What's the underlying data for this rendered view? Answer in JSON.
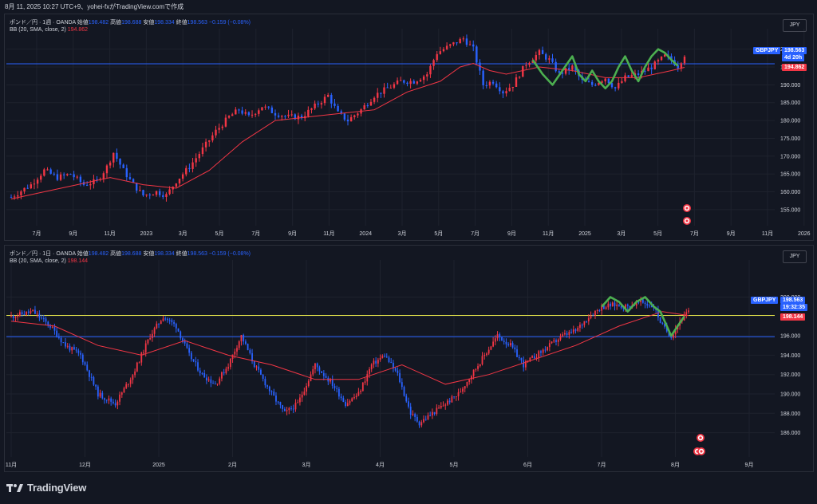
{
  "header": {
    "caption": "8月 11, 2025 10:27 UTC+9、yohei-fxがTradingView.comで作成"
  },
  "footer": {
    "brand": "TradingView"
  },
  "colors": {
    "bg": "#131722",
    "up": "#f23645",
    "down": "#2962ff",
    "bb": "#f23645",
    "wave": "#4caf50",
    "hline": "#2962ff",
    "yline": "#e8e84a"
  },
  "pane_weekly": {
    "legend": {
      "symbol": "ポンド／円 · 1週 · OANDA",
      "o_label": "始値",
      "o": "198.482",
      "h_label": "高値",
      "h": "198.688",
      "l_label": "安値",
      "l": "198.334",
      "c_label": "終値",
      "c": "198.563",
      "change": "−0.159 (−0.08%)",
      "bb_label": "BB (20, SMA, close, 2)",
      "bb_value": "194.862"
    },
    "currency": "JPY",
    "price_tag": {
      "symbol": "GBPJPY",
      "price": "198.563",
      "countdown": "4d 20h",
      "bb": "194.862"
    }
  },
  "pane_daily": {
    "legend": {
      "symbol": "ポンド／円 · 1日 · OANDA",
      "o_label": "始値",
      "o": "198.482",
      "h_label": "高値",
      "h": "198.688",
      "l_label": "安値",
      "l": "198.334",
      "c_label": "終値",
      "c": "198.563",
      "change": "−0.159 (−0.08%)",
      "bb_label": "BB (20, SMA, close, 2)",
      "bb_value": "198.144"
    },
    "currency": "JPY",
    "price_tag": {
      "symbol": "GBPJPY",
      "price": "198.563",
      "countdown": "19:32:35",
      "bb": "198.144"
    }
  },
  "chart_data": [
    {
      "type": "candlestick",
      "title": "ポンド／円 · 1週 · OANDA",
      "ylim": [
        150.5,
        203.5
      ],
      "y_ticks": [
        "155.000",
        "160.000",
        "165.000",
        "170.000",
        "175.000",
        "180.000",
        "185.000",
        "190.000",
        "195.000",
        "200.000"
      ],
      "x_ticks": [
        "7月",
        "9月",
        "11月",
        "2023",
        "3月",
        "5月",
        "7月",
        "9月",
        "11月",
        "2024",
        "3月",
        "5月",
        "7月",
        "9月",
        "11月",
        "2025",
        "3月",
        "5月",
        "7月",
        "9月",
        "11月",
        "2026"
      ],
      "horizontal_line": 195.9,
      "close_path": [
        [
          0,
          158.5
        ],
        [
          6,
          162
        ],
        [
          10,
          166
        ],
        [
          14,
          164
        ],
        [
          18,
          165
        ],
        [
          22,
          162
        ],
        [
          26,
          163
        ],
        [
          29,
          167
        ],
        [
          31,
          171
        ],
        [
          34,
          166
        ],
        [
          37,
          162
        ],
        [
          40,
          159
        ],
        [
          44,
          160
        ],
        [
          47,
          159
        ],
        [
          50,
          163
        ],
        [
          54,
          167
        ],
        [
          58,
          172
        ],
        [
          62,
          177
        ],
        [
          66,
          181
        ],
        [
          69,
          183
        ],
        [
          72,
          181
        ],
        [
          76,
          184
        ],
        [
          80,
          182
        ],
        [
          84,
          181
        ],
        [
          88,
          181
        ],
        [
          92,
          184
        ],
        [
          96,
          187
        ],
        [
          99,
          182
        ],
        [
          102,
          180
        ],
        [
          106,
          183
        ],
        [
          110,
          187
        ],
        [
          114,
          189
        ],
        [
          118,
          191
        ],
        [
          122,
          191
        ],
        [
          126,
          193
        ],
        [
          129,
          199
        ],
        [
          133,
          201
        ],
        [
          137,
          203
        ],
        [
          140,
          200
        ],
        [
          143,
          190
        ],
        [
          146,
          191
        ],
        [
          149,
          188
        ],
        [
          152,
          190
        ],
        [
          156,
          196
        ],
        [
          160,
          199
        ],
        [
          163,
          197
        ],
        [
          166,
          193
        ],
        [
          170,
          195
        ],
        [
          173,
          191
        ],
        [
          176,
          190
        ],
        [
          180,
          192
        ],
        [
          183,
          189
        ],
        [
          186,
          192
        ],
        [
          190,
          193
        ],
        [
          194,
          195
        ],
        [
          198,
          198
        ],
        [
          200,
          197
        ],
        [
          202,
          195.2
        ],
        [
          204,
          198.5
        ]
      ],
      "bb_path": [
        [
          0,
          158
        ],
        [
          10,
          160
        ],
        [
          20,
          162
        ],
        [
          30,
          164
        ],
        [
          40,
          162
        ],
        [
          50,
          161
        ],
        [
          60,
          166
        ],
        [
          70,
          174
        ],
        [
          80,
          180
        ],
        [
          90,
          181
        ],
        [
          100,
          182
        ],
        [
          110,
          183
        ],
        [
          120,
          188
        ],
        [
          130,
          191
        ],
        [
          136,
          195
        ],
        [
          140,
          196
        ],
        [
          145,
          194
        ],
        [
          150,
          193
        ],
        [
          160,
          195
        ],
        [
          170,
          194
        ],
        [
          180,
          192
        ],
        [
          190,
          192
        ],
        [
          200,
          194
        ],
        [
          204,
          194.9
        ]
      ],
      "wave_path": [
        [
          158,
          197
        ],
        [
          161,
          193
        ],
        [
          164,
          190
        ],
        [
          167,
          194
        ],
        [
          170,
          198
        ],
        [
          172,
          193
        ],
        [
          174,
          191
        ],
        [
          176,
          194
        ],
        [
          178,
          191
        ],
        [
          180,
          189
        ],
        [
          182,
          191
        ],
        [
          184,
          195
        ],
        [
          186,
          198
        ],
        [
          188,
          194
        ],
        [
          190,
          191
        ],
        [
          192,
          195
        ],
        [
          194,
          198
        ],
        [
          196,
          200
        ],
        [
          198,
          199
        ],
        [
          200,
          197
        ],
        [
          202,
          195.3
        ]
      ]
    },
    {
      "type": "candlestick",
      "title": "ポンド／円 · 1日 · OANDA",
      "ylim": [
        183.5,
        203
      ],
      "y_ticks": [
        "186.000",
        "188.000",
        "190.000",
        "192.000",
        "194.000",
        "196.000",
        "198.000",
        "200.000"
      ],
      "x_ticks": [
        "11月",
        "12月",
        "2025",
        "2月",
        "3月",
        "4月",
        "5月",
        "6月",
        "7月",
        "8月",
        "9月"
      ],
      "horizontal_lines": [
        198.1,
        195.9
      ],
      "close_path": [
        [
          0,
          198
        ],
        [
          10,
          198.5
        ],
        [
          18,
          197
        ],
        [
          25,
          195
        ],
        [
          32,
          194
        ],
        [
          40,
          190
        ],
        [
          48,
          189
        ],
        [
          56,
          192
        ],
        [
          64,
          196
        ],
        [
          70,
          198
        ],
        [
          76,
          197
        ],
        [
          82,
          194
        ],
        [
          88,
          192
        ],
        [
          94,
          191
        ],
        [
          100,
          193
        ],
        [
          106,
          196
        ],
        [
          112,
          193
        ],
        [
          120,
          190
        ],
        [
          126,
          188
        ],
        [
          132,
          189
        ],
        [
          140,
          193
        ],
        [
          148,
          191
        ],
        [
          154,
          189
        ],
        [
          160,
          190
        ],
        [
          166,
          193
        ],
        [
          172,
          194
        ],
        [
          178,
          192
        ],
        [
          184,
          188
        ],
        [
          188,
          187
        ],
        [
          194,
          188
        ],
        [
          200,
          189
        ],
        [
          206,
          190
        ],
        [
          212,
          192
        ],
        [
          218,
          194
        ],
        [
          224,
          196
        ],
        [
          230,
          195
        ],
        [
          236,
          193
        ],
        [
          242,
          194
        ],
        [
          248,
          195
        ],
        [
          254,
          196
        ],
        [
          260,
          196.5
        ],
        [
          266,
          198
        ],
        [
          272,
          199
        ],
        [
          278,
          199.2
        ],
        [
          284,
          199
        ],
        [
          290,
          199.5
        ],
        [
          296,
          199
        ],
        [
          300,
          197
        ],
        [
          304,
          196
        ],
        [
          308,
          197.5
        ],
        [
          312,
          198.5
        ]
      ],
      "bb_path": [
        [
          0,
          197.5
        ],
        [
          20,
          197
        ],
        [
          40,
          195
        ],
        [
          60,
          194
        ],
        [
          80,
          195.5
        ],
        [
          100,
          194
        ],
        [
          120,
          193
        ],
        [
          140,
          191.5
        ],
        [
          160,
          191.5
        ],
        [
          180,
          193
        ],
        [
          200,
          191
        ],
        [
          220,
          192
        ],
        [
          240,
          193.5
        ],
        [
          260,
          195
        ],
        [
          280,
          197
        ],
        [
          300,
          198.5
        ],
        [
          312,
          198.1
        ]
      ],
      "wave_path": [
        [
          272,
          199
        ],
        [
          276,
          200
        ],
        [
          280,
          199.5
        ],
        [
          284,
          198.5
        ],
        [
          288,
          199.5
        ],
        [
          292,
          200
        ],
        [
          296,
          199
        ],
        [
          299,
          198.5
        ],
        [
          302,
          197
        ],
        [
          304,
          196
        ],
        [
          307,
          197
        ],
        [
          310,
          198
        ]
      ]
    }
  ]
}
